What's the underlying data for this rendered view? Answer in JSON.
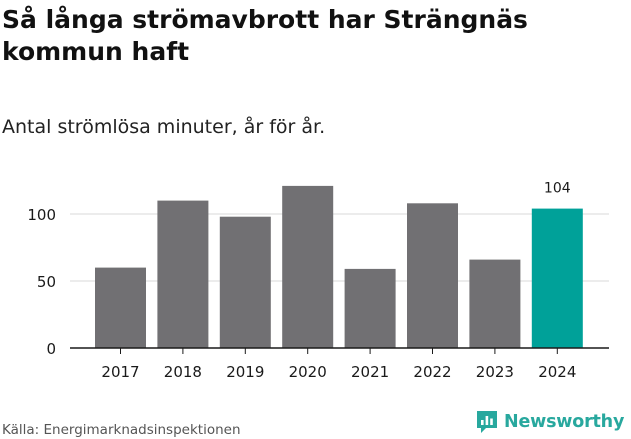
{
  "title": "Så långa strömavbrott har Strängnäs kommun haft",
  "subtitle": "Antal strömlösa minuter, år för år.",
  "source": "Källa: Energimarknadsinspektionen",
  "brand": {
    "name": "Newsworthy",
    "logo_icon": "newsworthy-logo-icon",
    "color": "#28a89e"
  },
  "colors": {
    "bar": "#717073",
    "highlight": "#00a199",
    "gridline": "#d9d9d9",
    "axis": "#1a1a1a"
  },
  "chart_data": {
    "type": "bar",
    "title": "Så långa strömavbrott har Strängnäs kommun haft",
    "subtitle": "Antal strömlösa minuter, år för år.",
    "categories": [
      "2017",
      "2018",
      "2019",
      "2020",
      "2021",
      "2022",
      "2023",
      "2024"
    ],
    "values": [
      60,
      110,
      98,
      121,
      59,
      108,
      66,
      104
    ],
    "highlight_index": 7,
    "data_labels": [
      {
        "index": 7,
        "text": "104"
      }
    ],
    "ylim": [
      0,
      130
    ],
    "yticks": [
      0,
      50,
      100
    ],
    "ytick_labels": [
      "0",
      "50",
      "100"
    ],
    "xlabel": "",
    "ylabel": "",
    "grid": true
  }
}
